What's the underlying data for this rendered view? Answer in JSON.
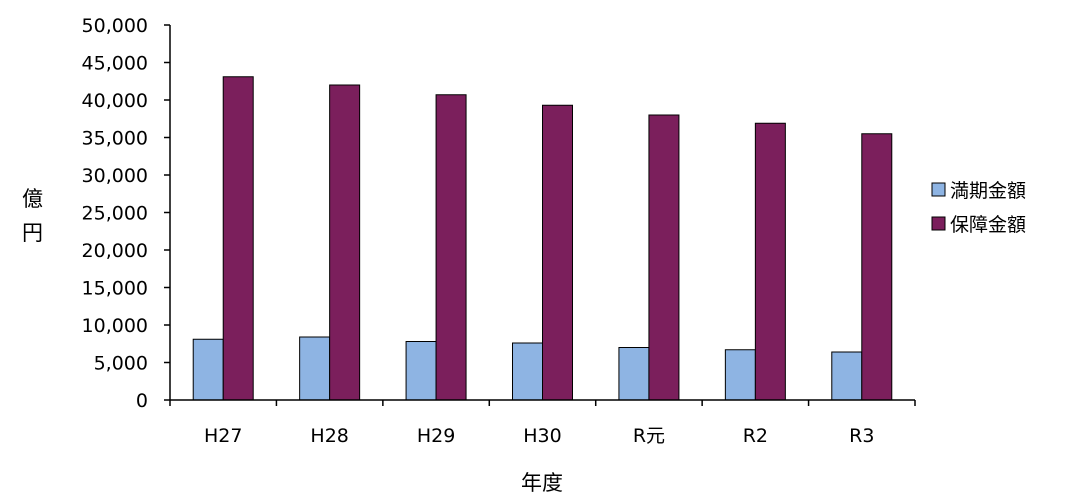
{
  "chart_data": {
    "type": "bar",
    "title": "",
    "xlabel": "年度",
    "ylabel": "億円",
    "categories": [
      "H27",
      "H28",
      "H29",
      "H30",
      "R元",
      "R2",
      "R3"
    ],
    "series": [
      {
        "name": "満期金額",
        "color": "#8eb4e3",
        "values": [
          8100,
          8400,
          7800,
          7600,
          7000,
          6700,
          6400
        ]
      },
      {
        "name": "保障金額",
        "color": "#7b1f5c",
        "values": [
          43100,
          42000,
          40700,
          39300,
          38000,
          36900,
          35500
        ]
      }
    ],
    "ylim": [
      0,
      50000
    ],
    "yticks": [
      "0",
      "5,000",
      "10,000",
      "15,000",
      "20,000",
      "25,000",
      "30,000",
      "35,000",
      "40,000",
      "45,000",
      "50,000"
    ],
    "grid": false,
    "legend_position": "right"
  }
}
